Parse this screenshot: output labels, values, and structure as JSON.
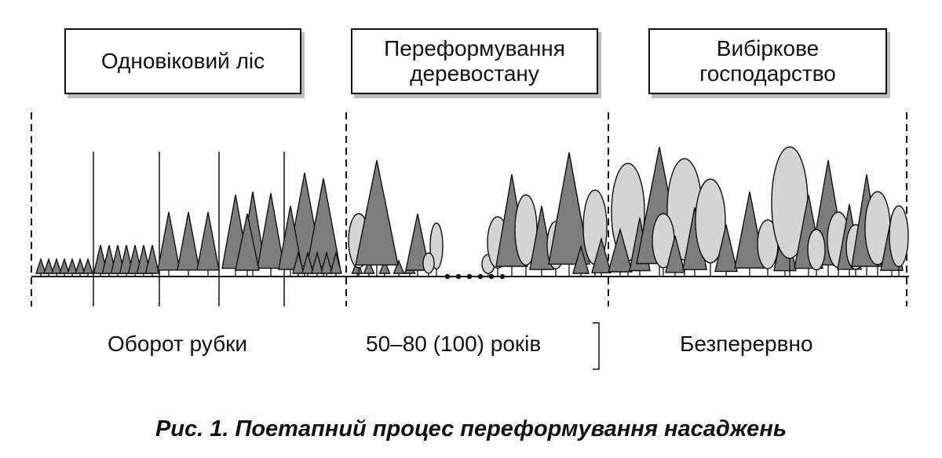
{
  "stages": [
    {
      "label": "Одновіковий ліс"
    },
    {
      "label": "Переформування\nдеревостану"
    },
    {
      "label": "Вибіркове\nгосподарство"
    }
  ],
  "periods": [
    {
      "label": "Оборот рубки"
    },
    {
      "label": "50–80 (100) років"
    },
    {
      "label": "Безперервно"
    }
  ],
  "caption": "Рис. 1. Поетапний процес переформування насаджень",
  "colors": {
    "conifer": "#7d7d7d",
    "deciduous": "#d4d4d4",
    "outline": "#111111"
  }
}
